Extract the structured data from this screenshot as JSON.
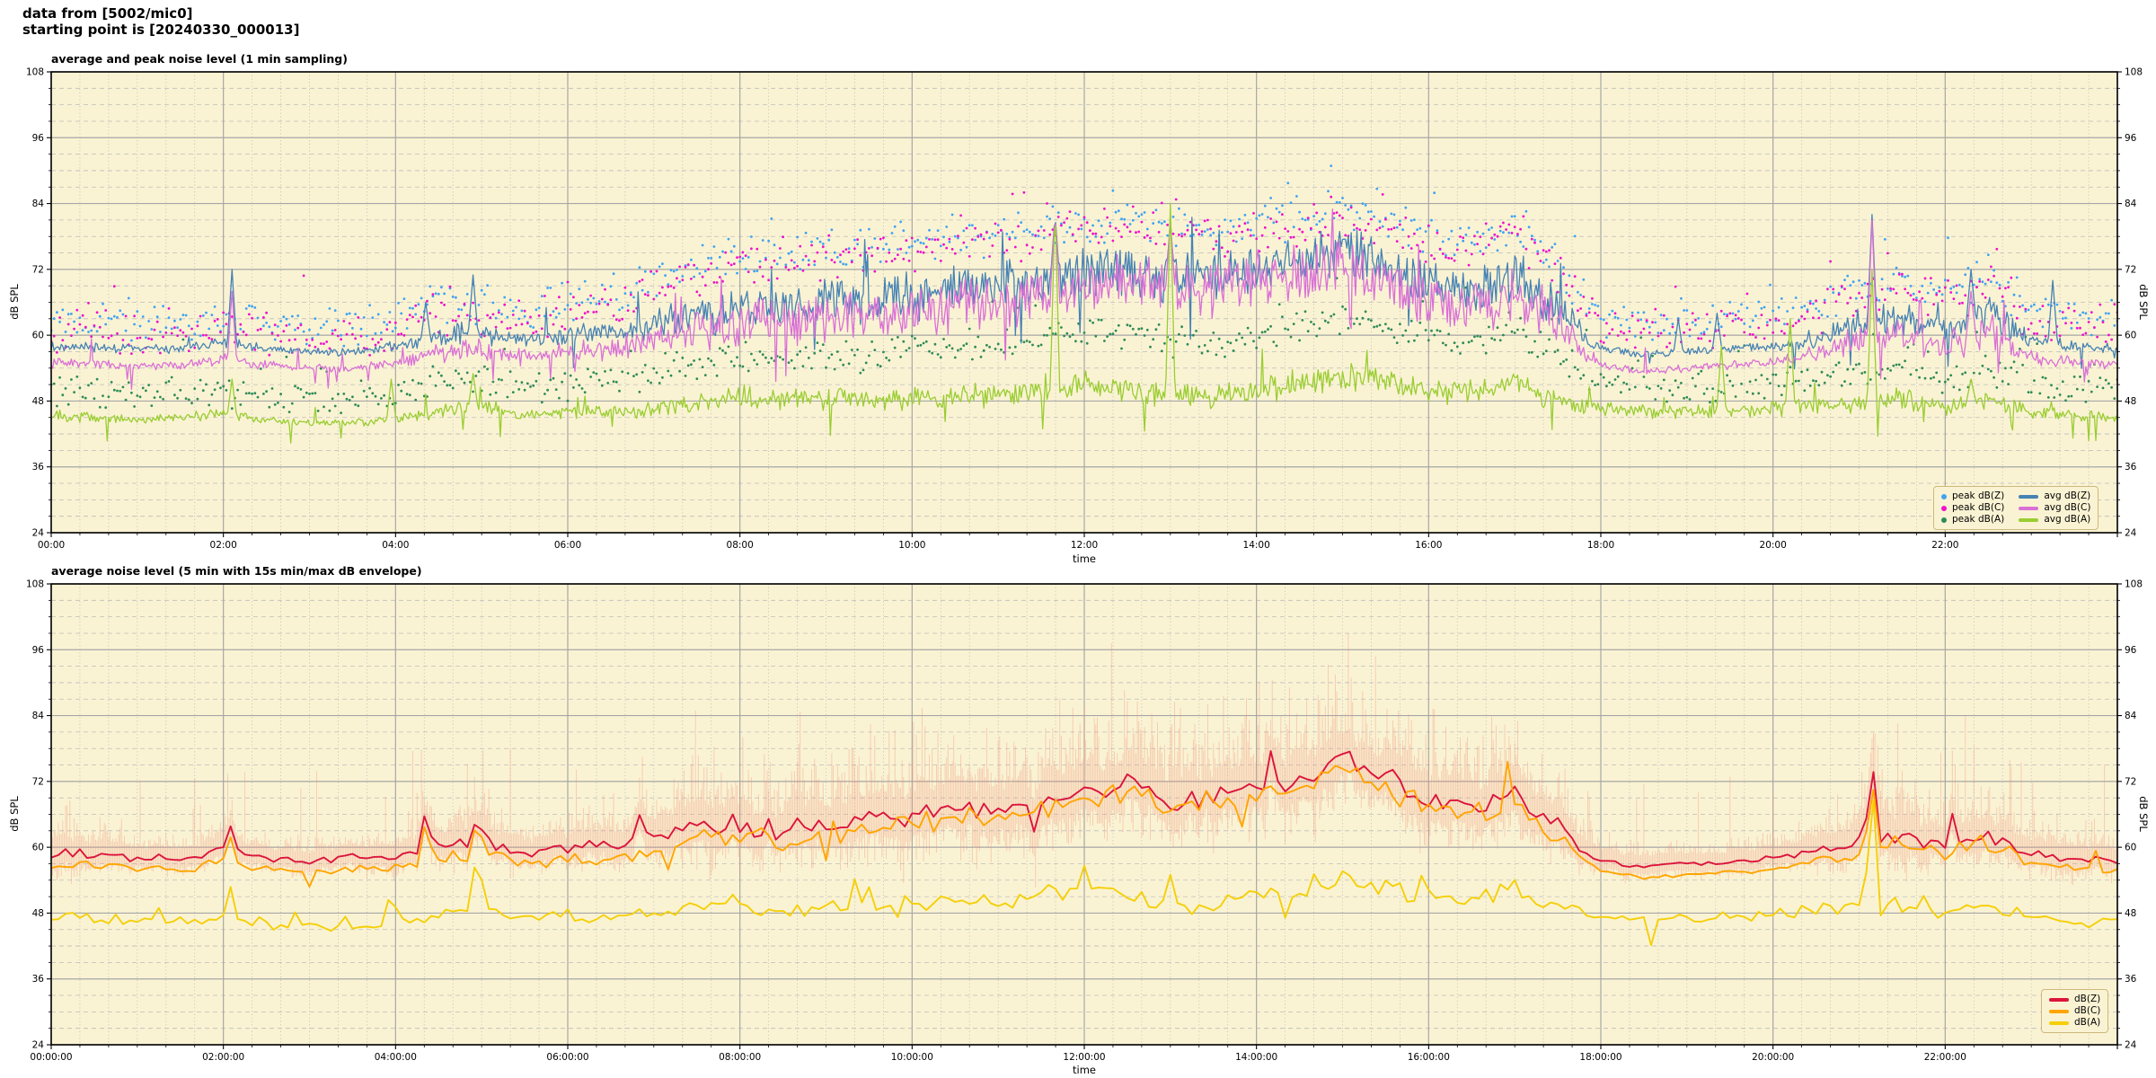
{
  "header": {
    "line1": "data from [5002/mic0]",
    "line2": "starting point is [20240330_000013]"
  },
  "axes": {
    "ylabel": "dB SPL",
    "xlabel": "time",
    "ytick_labels": [
      "24",
      "36",
      "48",
      "60",
      "72",
      "84",
      "96",
      "108"
    ],
    "yticks": [
      24,
      36,
      48,
      60,
      72,
      84,
      96,
      108
    ],
    "xtick_hours": [
      0,
      2,
      4,
      6,
      8,
      10,
      12,
      14,
      16,
      18,
      20,
      22
    ],
    "xtick_labels_top": [
      "00:00",
      "02:00",
      "04:00",
      "06:00",
      "08:00",
      "10:00",
      "12:00",
      "14:00",
      "16:00",
      "18:00",
      "20:00",
      "22:00"
    ],
    "xtick_labels_bottom": [
      "00:00:00",
      "02:00:00",
      "04:00:00",
      "06:00:00",
      "08:00:00",
      "10:00:00",
      "12:00:00",
      "14:00:00",
      "16:00:00",
      "18:00:00",
      "20:00:00",
      "22:00:00"
    ]
  },
  "colors": {
    "figure_bg": "#ffffff",
    "plot_bg": "#faf3d3",
    "grid_major": "#a6a6a6",
    "grid_minor": "#bdbdbd",
    "spine": "#000000",
    "peak_dbz": "#3fa2f2",
    "peak_dbc": "#ee11cc",
    "peak_dba": "#2e8b57",
    "avg_dbz": "#4682b4",
    "avg_dbc": "#da70d6",
    "avg_dba": "#9acd32",
    "dbz": "#dc143c",
    "dbc": "#ffa500",
    "dba": "#f5cf08",
    "envelope": "#ee8e7d",
    "legend_edge": "#cdb87d"
  },
  "top_chart": {
    "legend": [
      {
        "label": "peak dB(Z)",
        "marker": "dot",
        "color": "#3fa2f2"
      },
      {
        "label": "avg dB(Z)",
        "marker": "line",
        "color": "#4682b4"
      },
      {
        "label": "peak dB(C)",
        "marker": "dot",
        "color": "#ee11cc"
      },
      {
        "label": "avg dB(C)",
        "marker": "line",
        "color": "#da70d6"
      },
      {
        "label": "peak dB(A)",
        "marker": "dot",
        "color": "#2e8b57"
      },
      {
        "label": "avg dB(A)",
        "marker": "line",
        "color": "#9acd32"
      }
    ]
  },
  "bottom_chart": {
    "legend": [
      {
        "label": "dB(Z)",
        "marker": "line",
        "color": "#dc143c"
      },
      {
        "label": "dB(C)",
        "marker": "line",
        "color": "#ffa500"
      },
      {
        "label": "dB(A)",
        "marker": "line",
        "color": "#f5cf08"
      }
    ]
  },
  "chart_data": [
    {
      "type": "line",
      "title": "average and peak noise level (1 min sampling)",
      "xlabel": "time",
      "ylabel": "dB SPL",
      "xlim_hours": [
        0,
        24
      ],
      "ylim": [
        24,
        108
      ],
      "grid": true,
      "legend_position": "lower right",
      "x_anchor_step_hours": 0.5,
      "sampling_minutes": 1,
      "series": [
        {
          "name": "avg dB(Z)",
          "style": "line",
          "color": "#4682b4",
          "anchors": [
            58,
            58,
            57.5,
            57.5,
            58.5,
            57.5,
            57,
            57,
            58,
            60,
            60.5,
            59,
            60,
            60.5,
            62,
            63.5,
            64.5,
            65,
            66,
            66.5,
            67,
            68,
            68.5,
            69.5,
            71,
            72,
            70,
            70.5,
            72,
            73.5,
            75.5,
            73,
            68.5,
            67.5,
            71,
            65,
            57.5,
            56.5,
            57,
            57.5,
            58,
            59.5,
            62,
            63,
            61,
            64,
            59,
            58,
            57.5
          ],
          "spikes": [
            [
              2.1,
              72
            ],
            [
              4.35,
              66
            ],
            [
              4.9,
              71
            ],
            [
              11.66,
              82
            ],
            [
              13.0,
              80
            ],
            [
              18.9,
              63
            ],
            [
              19.35,
              64
            ],
            [
              21.15,
              82
            ],
            [
              22.3,
              72
            ],
            [
              23.25,
              70
            ]
          ],
          "noise": [
            0.9,
            57.5,
            0.5,
            5.5
          ]
        },
        {
          "name": "avg dB(C)",
          "style": "line",
          "color": "#da70d6",
          "anchors": [
            55,
            55,
            54.5,
            54.5,
            55.5,
            54.5,
            54,
            54,
            55,
            57,
            57.5,
            56,
            57,
            57.5,
            59,
            61,
            62,
            62.5,
            63.5,
            64,
            64.5,
            65.5,
            66,
            67.5,
            69,
            70,
            68,
            68.5,
            70,
            71.5,
            73,
            70.5,
            66,
            65,
            68.5,
            62.5,
            54.5,
            53.5,
            54,
            54.5,
            55,
            56.5,
            59,
            60,
            58,
            61,
            56,
            55,
            54.5
          ],
          "spikes": [
            [
              2.1,
              68
            ],
            [
              11.66,
              82
            ],
            [
              13.0,
              81
            ],
            [
              21.15,
              81
            ],
            [
              22.3,
              68
            ]
          ],
          "noise": [
            0.9,
            54.5,
            0.55,
            6
          ]
        },
        {
          "name": "avg dB(A)",
          "style": "line",
          "color": "#9acd32",
          "anchors": [
            45.5,
            45,
            44.5,
            45,
            45.5,
            44.5,
            44,
            44,
            44.5,
            46.5,
            47,
            45.5,
            46,
            46,
            46.5,
            47.5,
            49,
            48,
            48.5,
            48,
            48.5,
            49,
            49,
            50,
            51,
            50,
            49,
            48.5,
            50,
            51.5,
            53,
            52,
            50,
            49.5,
            51.5,
            48,
            46.5,
            46,
            46,
            46,
            46.5,
            47,
            48,
            48.5,
            47,
            48.5,
            46,
            45.5,
            45
          ],
          "spikes": [
            [
              2.1,
              52
            ],
            [
              3.95,
              52
            ],
            [
              4.9,
              53
            ],
            [
              11.66,
              84
            ],
            [
              13.0,
              84
            ],
            [
              19.4,
              58
            ],
            [
              20.2,
              63
            ],
            [
              21.15,
              72
            ],
            [
              22.3,
              52
            ]
          ],
          "noise": [
            0.8,
            44,
            0.35,
            3.2
          ]
        },
        {
          "name": "peak dB(Z)",
          "style": "scatter",
          "color": "#3fa2f2",
          "anchors": [
            63,
            63,
            62.5,
            62,
            63,
            62,
            62,
            62,
            63,
            66,
            66,
            64.5,
            66,
            67,
            70,
            72,
            74,
            74.5,
            75.5,
            76,
            77,
            78,
            78.5,
            79.5,
            80.5,
            81,
            79.5,
            79.5,
            80.5,
            81.5,
            82.5,
            81,
            78,
            77.5,
            79.5,
            73,
            63.5,
            62.5,
            63,
            63,
            64,
            66,
            69,
            70,
            67.5,
            71,
            65,
            64,
            63.5
          ],
          "jitter": 4.5,
          "outlier_p": 0.04
        },
        {
          "name": "peak dB(C)",
          "style": "scatter",
          "color": "#ee11cc",
          "anchors": [
            61,
            61,
            60.5,
            60,
            61,
            60,
            60,
            60,
            61,
            64,
            64,
            62.5,
            64,
            65,
            68.5,
            70.5,
            72.5,
            73,
            74,
            74.5,
            75.5,
            76.5,
            77,
            78,
            79,
            79.5,
            78,
            78,
            79,
            80,
            81,
            79.5,
            76.5,
            76,
            78,
            71.5,
            61.5,
            60.5,
            61,
            61,
            62,
            64,
            67,
            68.5,
            66,
            69.5,
            63,
            62,
            61.5
          ],
          "jitter": 4.5,
          "outlier_p": 0.04
        },
        {
          "name": "peak dB(A)",
          "style": "scatter",
          "color": "#2e8b57",
          "anchors": [
            50,
            49.5,
            49,
            49.5,
            50,
            49,
            48.5,
            48.5,
            49,
            51.5,
            52,
            50.5,
            51,
            51.5,
            53,
            54.5,
            56,
            55.5,
            56.5,
            56.5,
            57.5,
            58.5,
            58.5,
            59.5,
            60.5,
            60,
            59,
            58.5,
            60,
            61.5,
            63,
            62,
            59.5,
            59,
            61,
            56,
            51,
            50.5,
            50.5,
            50.5,
            51,
            52,
            53.5,
            54,
            52.5,
            54,
            51,
            50.5,
            50
          ],
          "jitter": 3.5,
          "outlier_p": 0.05
        }
      ]
    },
    {
      "type": "line",
      "title": "average noise level (5 min with 15s min/max dB envelope)",
      "xlabel": "time",
      "ylabel": "dB SPL",
      "xlim_hours": [
        0,
        24
      ],
      "ylim": [
        24,
        108
      ],
      "grid": true,
      "legend_position": "lower right",
      "x_anchor_step_hours": 0.5,
      "sampling_minutes": 5,
      "envelope": {
        "series": "dB(Z)",
        "color": "#ee8e7d",
        "spread_hi_anchors": [
          8,
          7,
          4,
          3.5,
          4.5,
          3.5,
          3.5,
          3.5,
          5,
          7,
          7,
          6,
          6,
          7,
          9,
          12,
          13,
          12,
          13,
          13,
          14,
          15,
          14,
          16,
          15,
          15,
          14,
          14,
          15,
          15,
          14,
          14,
          15,
          14,
          13,
          10,
          4,
          3,
          3,
          3.5,
          4,
          6,
          10,
          12,
          8,
          10,
          7,
          6,
          5
        ],
        "spread_lo_anchors": [
          6,
          5,
          3,
          3,
          3,
          3,
          3,
          3,
          4,
          5,
          5,
          4.5,
          4.5,
          5,
          7,
          9,
          10,
          9,
          10,
          10,
          11,
          11,
          11,
          12,
          11,
          11,
          10,
          10,
          11,
          11,
          11,
          11,
          11,
          10,
          10,
          8,
          3,
          2.5,
          2.5,
          3,
          3,
          4.5,
          7,
          9,
          6,
          7.5,
          5,
          4.5,
          4
        ]
      },
      "series": [
        {
          "name": "dB(Z)",
          "style": "line",
          "color": "#dc143c",
          "anchors": [
            58.5,
            59,
            58,
            58,
            59.5,
            58,
            57.5,
            58,
            58.5,
            60.5,
            61,
            59,
            60,
            60,
            61.5,
            63.5,
            64.5,
            63,
            64.5,
            65,
            66,
            67.5,
            66.5,
            68.5,
            70,
            71.5,
            68.5,
            69.5,
            71,
            72.5,
            75.5,
            73,
            68.5,
            67,
            70.5,
            63,
            57.5,
            56.5,
            57,
            57.5,
            58,
            59.5,
            61,
            62.5,
            60.5,
            63,
            59,
            58,
            57.5
          ],
          "spikes": [
            [
              2.08,
              64
            ],
            [
              4.35,
              67
            ],
            [
              4.95,
              66
            ],
            [
              6.85,
              67
            ],
            [
              15.0,
              77
            ],
            [
              21.15,
              76.5
            ]
          ],
          "noise": [
            0.5,
            57,
            0.35,
            2.8
          ]
        },
        {
          "name": "dB(C)",
          "style": "line",
          "color": "#ffa500",
          "anchors": [
            56.5,
            57,
            56,
            56,
            57.5,
            56,
            55.5,
            56,
            56.5,
            58.5,
            59,
            57,
            58,
            58,
            59.5,
            61.5,
            62.5,
            61,
            62.5,
            63,
            64.5,
            66,
            65,
            67,
            68.5,
            70,
            67,
            68,
            69.5,
            71,
            74,
            71.5,
            67,
            65.5,
            69,
            61.5,
            55.5,
            54.5,
            55,
            55.5,
            56,
            57.5,
            59,
            60.5,
            58.5,
            61,
            57,
            56,
            55.5
          ],
          "spikes": [
            [
              2.08,
              62
            ],
            [
              4.35,
              65
            ],
            [
              4.95,
              65.5
            ],
            [
              21.15,
              73
            ]
          ],
          "noise": [
            0.5,
            55,
            0.35,
            2.8
          ]
        },
        {
          "name": "dB(A)",
          "style": "line",
          "color": "#f5cf08",
          "anchors": [
            47,
            47,
            46.5,
            46.5,
            47,
            46,
            45.5,
            45.5,
            46,
            47.5,
            48.5,
            47,
            47.5,
            47,
            47.5,
            49,
            50.5,
            48.5,
            49.5,
            48.5,
            49.5,
            50.5,
            50,
            51.5,
            52.5,
            51,
            49.5,
            49,
            51,
            52.5,
            54.5,
            53,
            51,
            50.5,
            52.5,
            49,
            47.5,
            47,
            47,
            47,
            47.5,
            48.5,
            49,
            50,
            48.5,
            50,
            47.5,
            46.5,
            46.5
          ],
          "spikes": [
            [
              2.08,
              53
            ],
            [
              3.95,
              53
            ],
            [
              4.95,
              61
            ],
            [
              13.0,
              55
            ],
            [
              21.15,
              73
            ]
          ],
          "noise": [
            0.5,
            44,
            0.3,
            2.2
          ]
        }
      ]
    }
  ]
}
